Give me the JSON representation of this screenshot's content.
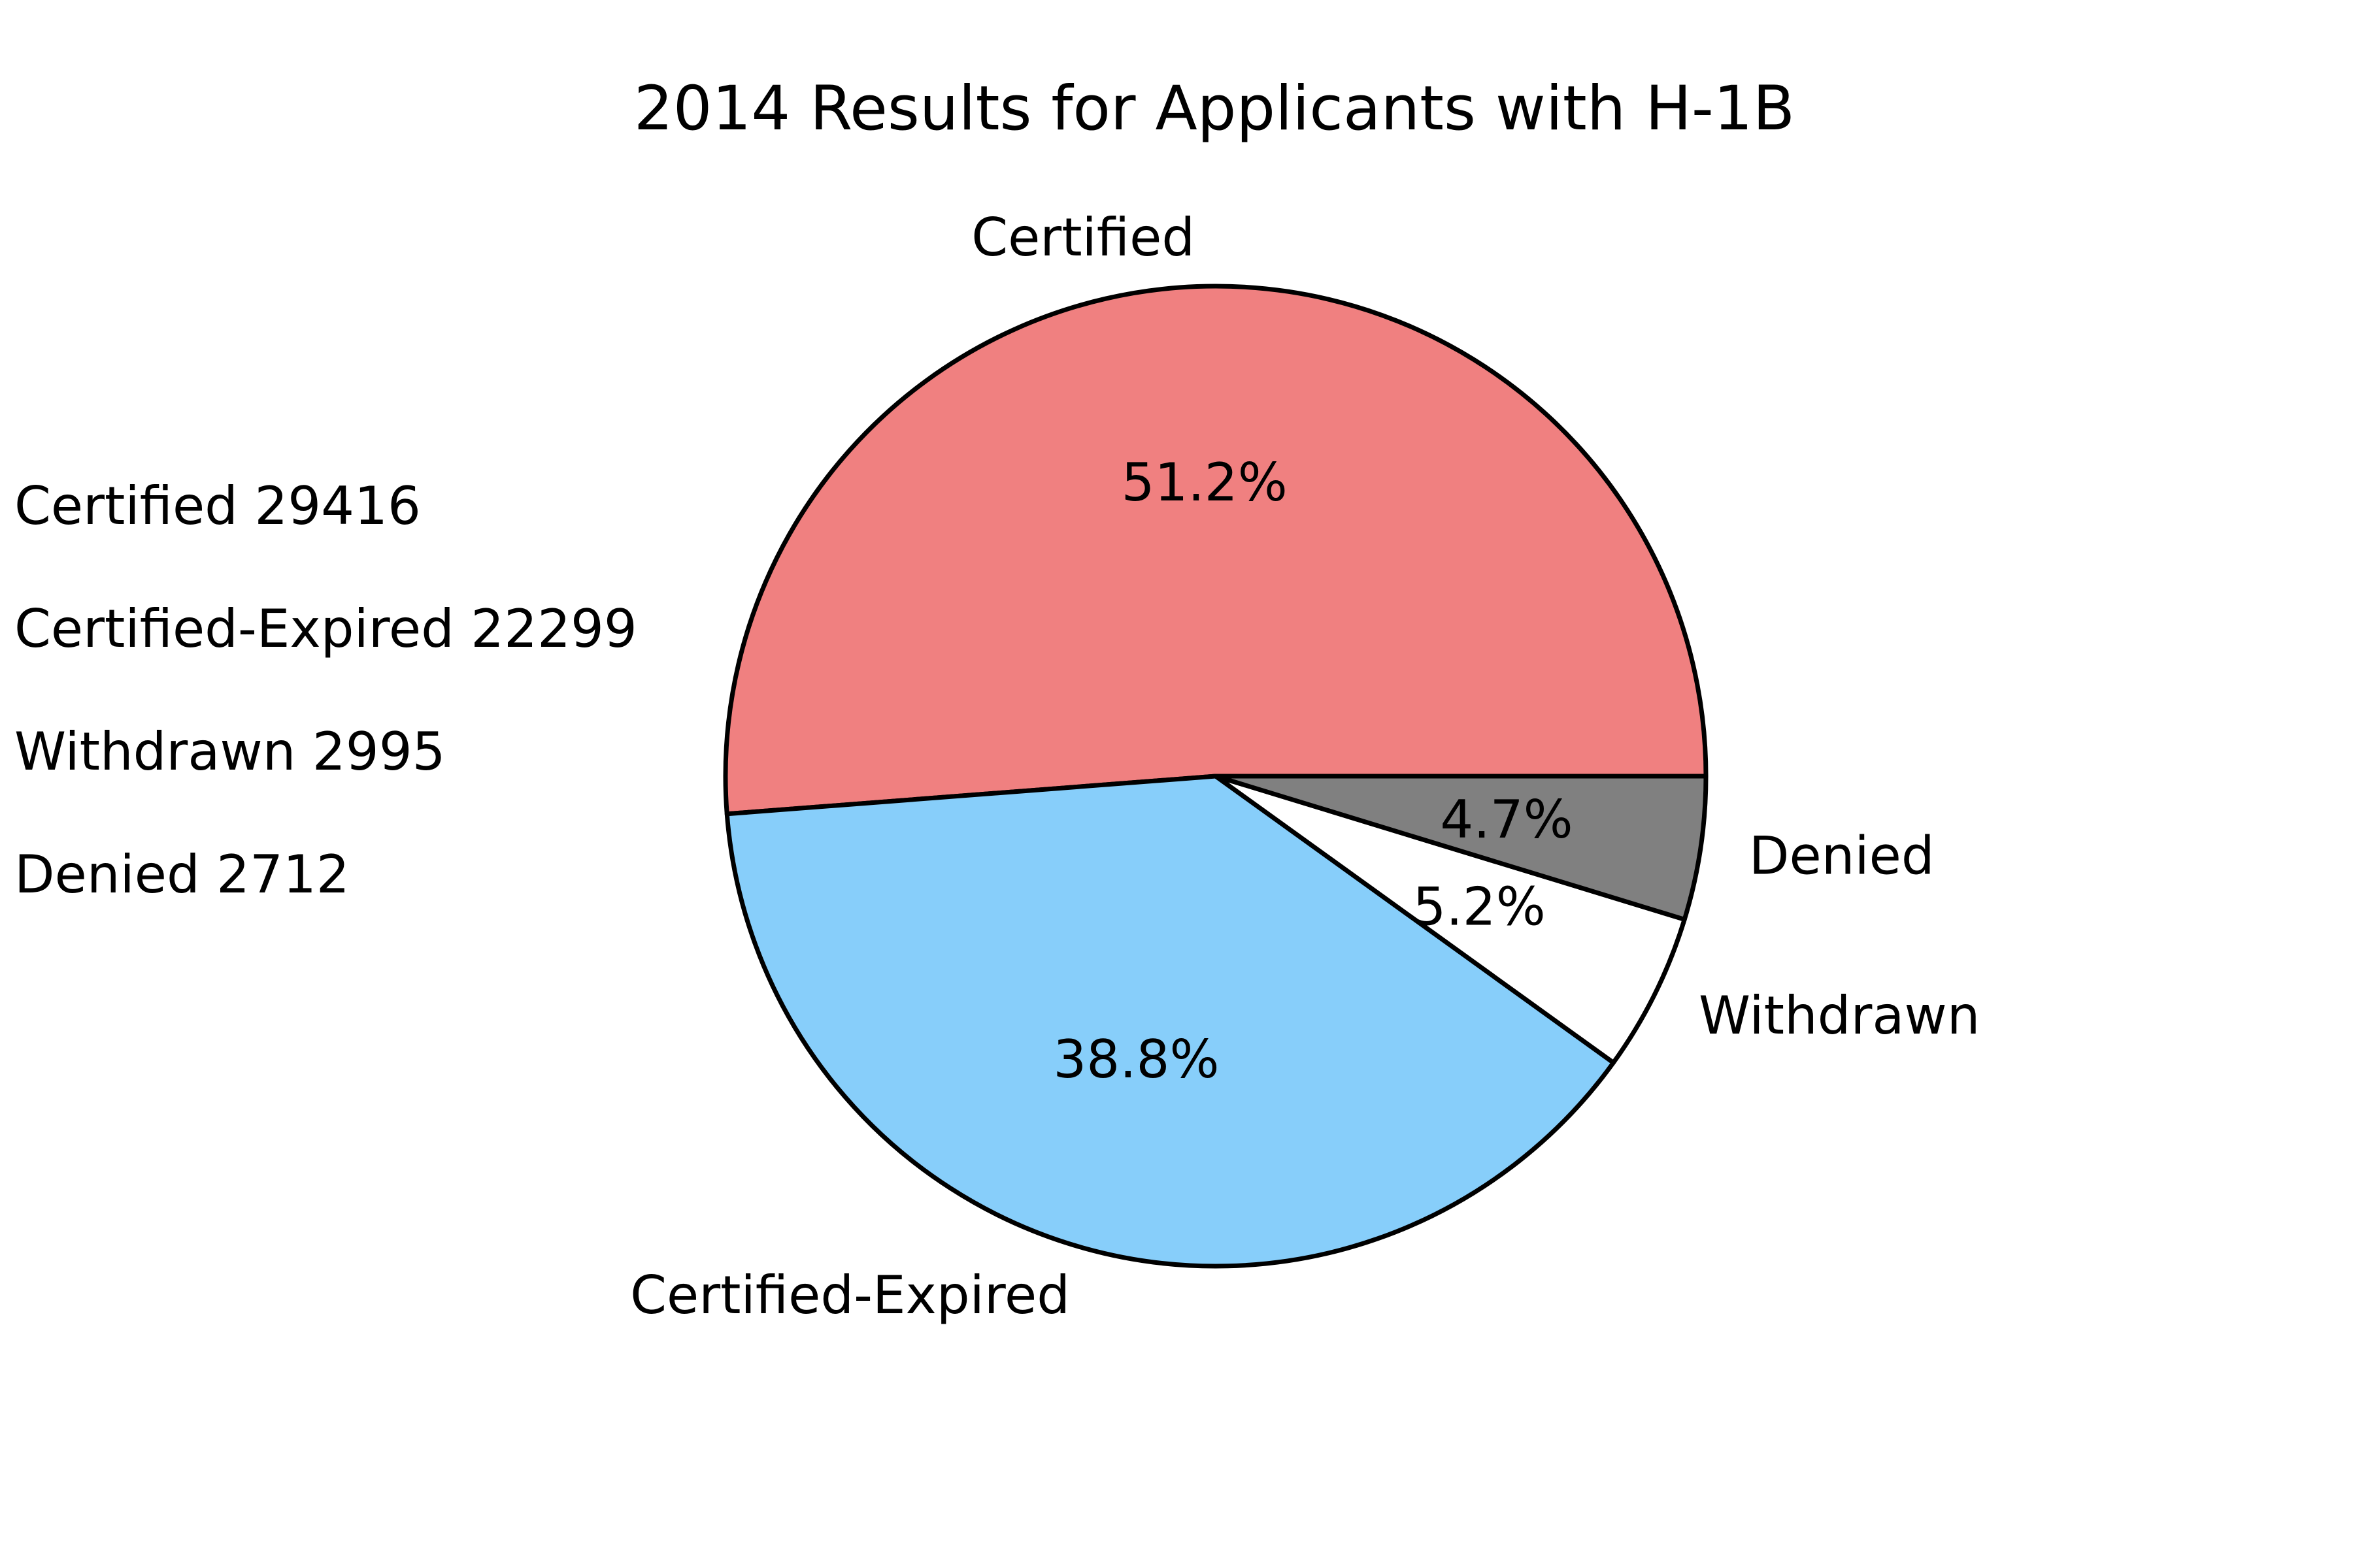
{
  "chart_data": {
    "type": "pie",
    "title": "2014 Results for Applicants with H-1B",
    "slices": [
      {
        "label": "Certified",
        "value": 29416,
        "pct_label": "51.2%",
        "color": "#f08080"
      },
      {
        "label": "Certified-Expired",
        "value": 22299,
        "pct_label": "38.8%",
        "color": "#87cefa"
      },
      {
        "label": "Withdrawn",
        "value": 2995,
        "pct_label": "5.2%",
        "color": "#ffffff"
      },
      {
        "label": "Denied",
        "value": 2712,
        "pct_label": "4.7%",
        "color": "#808080"
      }
    ],
    "side_text": [
      "Certified 29416",
      "Certified-Expired 22299",
      "Withdrawn 2995",
      "Denied 2712"
    ],
    "start_angle_deg": 0,
    "direction": "counterclockwise"
  }
}
